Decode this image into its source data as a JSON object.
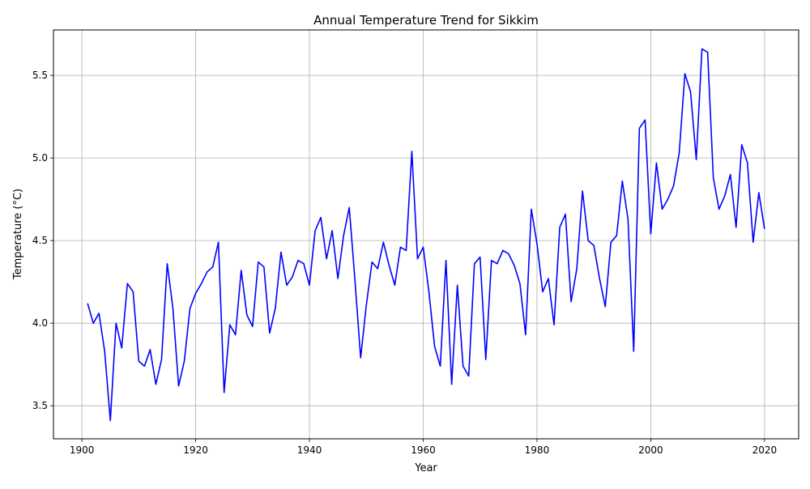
{
  "chart_data": {
    "type": "line",
    "title": "Annual Temperature Trend for Sikkim",
    "xlabel": "Year",
    "ylabel": "Temperature (°C)",
    "xlim": [
      1895,
      2026
    ],
    "ylim": [
      3.3,
      5.775
    ],
    "xticks": [
      1900,
      1920,
      1940,
      1960,
      1980,
      2000,
      2020
    ],
    "yticks": [
      3.5,
      4.0,
      4.5,
      5.0,
      5.5
    ],
    "xtick_labels": [
      "1900",
      "1920",
      "1940",
      "1960",
      "1980",
      "2000",
      "2020"
    ],
    "ytick_labels": [
      "3.5",
      "4.0",
      "4.5",
      "5.0",
      "5.5"
    ],
    "grid": true,
    "series": [
      {
        "color": "#0000ff",
        "x": [
          1901,
          1902,
          1903,
          1904,
          1905,
          1906,
          1907,
          1908,
          1909,
          1910,
          1911,
          1912,
          1913,
          1914,
          1915,
          1916,
          1917,
          1918,
          1919,
          1920,
          1921,
          1922,
          1923,
          1924,
          1925,
          1926,
          1927,
          1928,
          1929,
          1930,
          1931,
          1932,
          1933,
          1934,
          1935,
          1936,
          1937,
          1938,
          1939,
          1940,
          1941,
          1942,
          1943,
          1944,
          1945,
          1946,
          1947,
          1948,
          1949,
          1950,
          1951,
          1952,
          1953,
          1954,
          1955,
          1956,
          1957,
          1958,
          1959,
          1960,
          1961,
          1962,
          1963,
          1964,
          1965,
          1966,
          1967,
          1968,
          1969,
          1970,
          1971,
          1972,
          1973,
          1974,
          1975,
          1976,
          1977,
          1978,
          1979,
          1980,
          1981,
          1982,
          1983,
          1984,
          1985,
          1986,
          1987,
          1988,
          1989,
          1990,
          1991,
          1992,
          1993,
          1994,
          1995,
          1996,
          1997,
          1998,
          1999,
          2000,
          2001,
          2002,
          2003,
          2004,
          2005,
          2006,
          2007,
          2008,
          2009,
          2010,
          2011,
          2012,
          2013,
          2014,
          2015,
          2016,
          2017,
          2018,
          2019,
          2020
        ],
        "values": [
          4.12,
          4.0,
          4.06,
          3.83,
          3.41,
          4.0,
          3.85,
          4.24,
          4.19,
          3.77,
          3.74,
          3.84,
          3.63,
          3.78,
          4.36,
          4.09,
          3.62,
          3.77,
          4.09,
          4.18,
          4.24,
          4.31,
          4.34,
          4.49,
          3.58,
          3.99,
          3.93,
          4.32,
          4.05,
          3.98,
          4.37,
          4.34,
          3.94,
          4.09,
          4.43,
          4.23,
          4.28,
          4.38,
          4.36,
          4.23,
          4.56,
          4.64,
          4.39,
          4.56,
          4.27,
          4.53,
          4.7,
          4.26,
          3.79,
          4.11,
          4.37,
          4.33,
          4.49,
          4.35,
          4.23,
          4.46,
          4.44,
          5.04,
          4.39,
          4.46,
          4.19,
          3.86,
          3.74,
          4.38,
          3.63,
          4.23,
          3.74,
          3.68,
          4.36,
          4.4,
          3.78,
          4.38,
          4.36,
          4.44,
          4.42,
          4.35,
          4.24,
          3.93,
          4.69,
          4.48,
          4.19,
          4.27,
          3.99,
          4.58,
          4.66,
          4.13,
          4.33,
          4.8,
          4.5,
          4.47,
          4.27,
          4.1,
          4.49,
          4.53,
          4.86,
          4.63,
          3.83,
          5.18,
          5.23,
          4.54,
          4.97,
          4.69,
          4.75,
          4.83,
          5.03,
          5.51,
          5.4,
          4.99,
          5.66,
          5.64,
          4.88,
          4.69,
          4.77,
          4.9,
          4.58,
          5.08,
          4.97,
          4.49,
          4.79,
          4.57
        ]
      }
    ]
  }
}
